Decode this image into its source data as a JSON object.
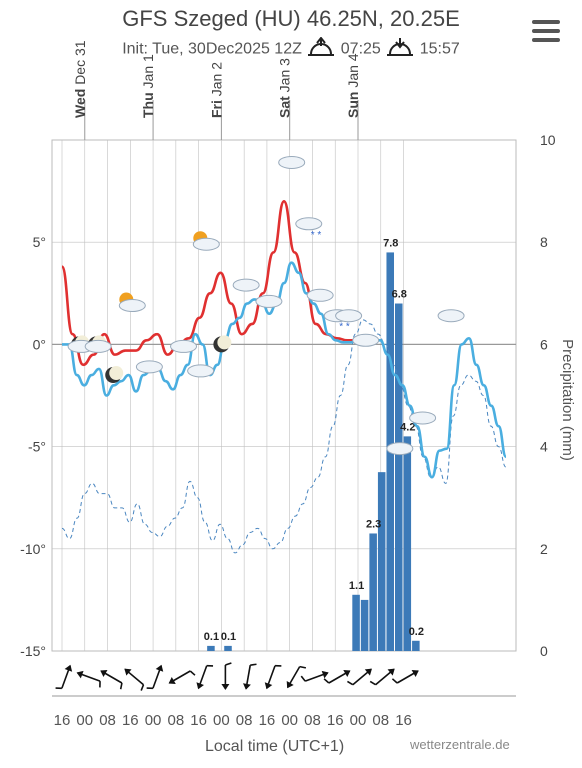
{
  "header": {
    "title": "GFS Szeged (HU) 46.25N, 20.25E",
    "init": "Init: Tue, 30Dec2025 12Z",
    "sunrise": "07:25",
    "sunset": "15:57"
  },
  "footer": {
    "credit": "wetterzentrale.de"
  },
  "chart_data": {
    "type": "line",
    "xlabel": "Local time (UTC+1)",
    "ylabel_right": "Precipitation (mm)",
    "ylim_left": [
      -15,
      10
    ],
    "ylim_right": [
      0,
      10
    ],
    "left_ticks": [
      "5°",
      "0°",
      "-5°",
      "-10°",
      "-15°"
    ],
    "right_ticks": [
      "10",
      "8",
      "6",
      "4",
      "2",
      "0"
    ],
    "days": [
      {
        "day": "Wed",
        "date": "Dec 31"
      },
      {
        "day": "Thu",
        "date": "Jan 1"
      },
      {
        "day": "Fri",
        "date": "Jan 2"
      },
      {
        "day": "Sat",
        "date": "Jan 3"
      },
      {
        "day": "Sun",
        "date": "Jan 4"
      }
    ],
    "time_ticks": [
      "16",
      "00",
      "08",
      "16",
      "00",
      "08",
      "16",
      "00",
      "08",
      "16",
      "00",
      "08",
      "16",
      "00",
      "08",
      "16"
    ],
    "time_hours": [
      0,
      8,
      16,
      24,
      32,
      40,
      48,
      56,
      64,
      72,
      80,
      84,
      88,
      92,
      96,
      100,
      104,
      112,
      120,
      128,
      136,
      144
    ],
    "temperature_2m": [
      0,
      0,
      -1.5,
      -2.0,
      -1.5,
      -1.2,
      -2.5,
      -2.0,
      -1.8,
      -1.5,
      -2.3,
      -1.5,
      -1.3,
      -1.2,
      -1.8,
      -2.2,
      -1.5,
      -1.0,
      0.5,
      0.0,
      -1.5,
      -1.0,
      0.2,
      1.0,
      1.3,
      2.0,
      2.2,
      2.1,
      1.5,
      2.0,
      3.0,
      4.0,
      3.5,
      2.5,
      2.0,
      1.5,
      0.5,
      0.2,
      0.1,
      0.1,
      0.2,
      0.2,
      0.2,
      0.2,
      -0.5,
      -1.5,
      -2.0,
      -3.0,
      -4.0,
      -5.5,
      -6.5,
      -5.2,
      -5.1,
      -2.0,
      0.0,
      0.3,
      -1.0,
      -2.0,
      -3.0,
      -4.0,
      -5.5
    ],
    "temperature_max": [
      3.8,
      0.5,
      -1.0,
      -0.5,
      0.5,
      -0.5,
      -0.3,
      -0.3,
      0.2,
      0.5,
      -0.5,
      0.0,
      0.3,
      1.3,
      2.5,
      3.5,
      2.0,
      0.5,
      1.0,
      2.5,
      4.5,
      7.0,
      4.5,
      3.0,
      1.0,
      0.5,
      0.3,
      0.2,
      0.2
    ],
    "dewpoint": [
      -9,
      -9.5,
      -8.5,
      -7.3,
      -6.8,
      -7.3,
      -7.3,
      -8.0,
      -8.0,
      -8.7,
      -7.8,
      -8.8,
      -9.2,
      -9.4,
      -8.9,
      -8.5,
      -8.0,
      -6.7,
      -7.5,
      -8.7,
      -9.6,
      -8.8,
      -9.5,
      -10.2,
      -9.8,
      -9.2,
      -9.0,
      -9.5,
      -10.0,
      -9.7,
      -9.0,
      -8.4,
      -7.8,
      -7.0,
      -6.5,
      -5.5,
      -4.0,
      -2.5,
      -1.0,
      0.5,
      1.2,
      1.0,
      0.5,
      0.0,
      -1.0,
      -2.0,
      -3.0,
      -4.0,
      -5.5,
      -6.5,
      -6.0,
      -6.8,
      -3.5,
      -2.0,
      -1.5,
      -1.8,
      -2.5,
      -4.0,
      -5.0,
      -6.0
    ],
    "precipitation_mm": [
      0,
      0,
      0,
      0,
      0,
      0,
      0.1,
      0,
      0.1,
      0,
      0,
      0,
      0,
      0,
      0,
      0,
      0,
      0,
      0,
      0,
      0,
      0,
      0,
      1.1,
      1.0,
      2.3,
      3.5,
      7.8,
      6.8,
      4.2,
      0.2,
      0,
      0,
      0,
      0,
      0,
      0,
      0,
      0
    ],
    "precip_labels": [
      {
        "value": "0.1"
      },
      {
        "value": "0.1"
      },
      {
        "value": "1.1"
      },
      {
        "value": "2.3"
      },
      {
        "value": "7.8"
      },
      {
        "value": "6.8"
      },
      {
        "value": "4.2"
      },
      {
        "value": "0.2"
      }
    ],
    "weather_icons": [
      "moon-cloud",
      "moon-cloud",
      "moon",
      "sun-cloud",
      "cloud",
      "cloud",
      "cloud",
      "sun-cloud",
      "moon",
      "cloud",
      "cloud",
      "cloud",
      "cloud-snow",
      "cloud",
      "cloud-snow",
      "cloud",
      "cloud",
      "cloud",
      "cloud",
      "cloud"
    ],
    "wind_arrows": [
      "wind-arrow-icon"
    ]
  },
  "colors": {
    "temp_line": "#4aaee0",
    "max_line": "#e03030",
    "precip_bar": "#3c7ab8",
    "dewpoint_line": "#4a86c0",
    "grid": "#c0c0c0"
  }
}
